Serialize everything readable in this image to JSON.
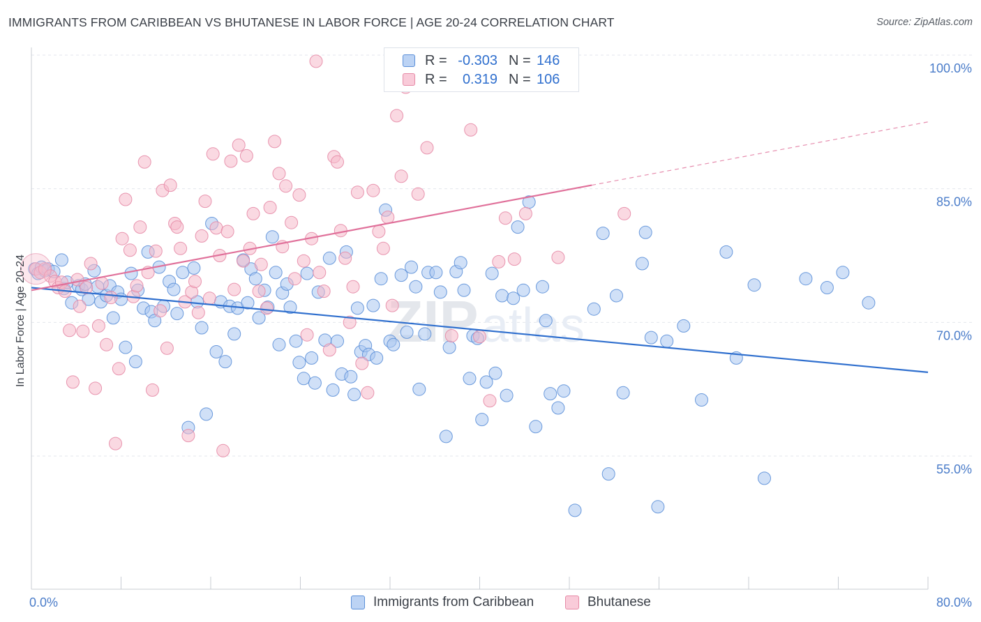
{
  "title": "IMMIGRANTS FROM CARIBBEAN VS BHUTANESE IN LABOR FORCE | AGE 20-24 CORRELATION CHART",
  "source": "Source: ZipAtlas.com",
  "watermark": "ZIPatlas",
  "colors": {
    "blue_fill": "#a9c6f0",
    "blue_stroke": "#5b8fd8",
    "blue_line": "#2f6fce",
    "pink_fill": "#f5b9cb",
    "pink_stroke": "#e68aa6",
    "pink_line": "#e0709a",
    "axis_text": "#4a7cc9",
    "grid": "#e3e6ec"
  },
  "legend": {
    "rows": [
      {
        "r_label": "R =",
        "r_value": "-0.303",
        "n_label": "N =",
        "n_value": "146"
      },
      {
        "r_label": "R =",
        "r_value": "0.319",
        "n_label": "N =",
        "n_value": "106"
      }
    ]
  },
  "bottom_legend": [
    {
      "label": "Immigrants from Caribbean"
    },
    {
      "label": "Bhutanese"
    }
  ],
  "chart_data": {
    "type": "scatter",
    "xlabel": "",
    "ylabel": "In Labor Force | Age 20-24",
    "x_tick_labels": [
      "0.0%",
      "80.0%"
    ],
    "y_tick_labels": [
      "100.0%",
      "85.0%",
      "70.0%",
      "55.0%"
    ],
    "xlim": [
      0,
      80
    ],
    "ylim": [
      42,
      101
    ],
    "grid": true,
    "legend_placement": "top-center",
    "series": [
      {
        "name": "Immigrants from Caribbean",
        "color": "blue",
        "trend": {
          "x": [
            0,
            80
          ],
          "y": [
            73.9,
            64.4
          ]
        },
        "points": [
          [
            0.3,
            76.0
          ],
          [
            0.6,
            75.5
          ],
          [
            0.9,
            76.2
          ],
          [
            1.2,
            75.8
          ],
          [
            1.5,
            76.0
          ],
          [
            2.0,
            75.7
          ],
          [
            2.7,
            77.0
          ],
          [
            2.9,
            73.8
          ],
          [
            3.2,
            74.5
          ],
          [
            3.6,
            72.2
          ],
          [
            4.2,
            74.1
          ],
          [
            4.5,
            73.7
          ],
          [
            4.8,
            74.3
          ],
          [
            5.1,
            72.6
          ],
          [
            5.6,
            75.8
          ],
          [
            5.9,
            74.0
          ],
          [
            6.2,
            72.3
          ],
          [
            6.7,
            73.0
          ],
          [
            7.0,
            74.1
          ],
          [
            7.3,
            70.5
          ],
          [
            7.7,
            73.4
          ],
          [
            8.0,
            72.6
          ],
          [
            8.4,
            67.2
          ],
          [
            8.9,
            75.5
          ],
          [
            9.3,
            65.6
          ],
          [
            9.5,
            73.6
          ],
          [
            10.0,
            71.6
          ],
          [
            10.4,
            77.9
          ],
          [
            10.7,
            71.2
          ],
          [
            11.0,
            70.2
          ],
          [
            11.4,
            76.2
          ],
          [
            11.8,
            71.8
          ],
          [
            12.3,
            74.6
          ],
          [
            12.7,
            73.7
          ],
          [
            13.0,
            71.0
          ],
          [
            13.5,
            75.6
          ],
          [
            14.0,
            58.2
          ],
          [
            14.5,
            76.1
          ],
          [
            14.8,
            72.3
          ],
          [
            15.2,
            69.4
          ],
          [
            15.6,
            59.7
          ],
          [
            16.1,
            81.1
          ],
          [
            16.5,
            66.7
          ],
          [
            16.9,
            72.3
          ],
          [
            17.3,
            65.6
          ],
          [
            17.7,
            71.8
          ],
          [
            18.1,
            68.7
          ],
          [
            18.4,
            71.6
          ],
          [
            18.9,
            77.0
          ],
          [
            19.3,
            72.2
          ],
          [
            19.6,
            76.0
          ],
          [
            20.0,
            74.9
          ],
          [
            20.3,
            70.5
          ],
          [
            20.8,
            73.6
          ],
          [
            21.1,
            71.7
          ],
          [
            21.5,
            79.6
          ],
          [
            21.8,
            75.6
          ],
          [
            22.1,
            67.5
          ],
          [
            22.4,
            73.3
          ],
          [
            22.8,
            74.3
          ],
          [
            23.1,
            71.7
          ],
          [
            23.6,
            67.9
          ],
          [
            23.9,
            65.5
          ],
          [
            24.3,
            63.7
          ],
          [
            24.6,
            75.5
          ],
          [
            25.0,
            66.0
          ],
          [
            25.3,
            63.2
          ],
          [
            25.6,
            73.4
          ],
          [
            26.2,
            68.0
          ],
          [
            26.6,
            77.2
          ],
          [
            26.9,
            62.4
          ],
          [
            27.3,
            67.9
          ],
          [
            27.7,
            64.2
          ],
          [
            28.1,
            77.9
          ],
          [
            28.5,
            63.9
          ],
          [
            28.8,
            61.9
          ],
          [
            29.1,
            71.6
          ],
          [
            29.4,
            66.7
          ],
          [
            29.8,
            67.4
          ],
          [
            30.1,
            66.4
          ],
          [
            30.5,
            71.9
          ],
          [
            30.8,
            66.0
          ],
          [
            31.2,
            74.9
          ],
          [
            31.6,
            82.6
          ],
          [
            32.0,
            67.9
          ],
          [
            32.3,
            67.5
          ],
          [
            33.0,
            75.3
          ],
          [
            33.5,
            68.9
          ],
          [
            33.9,
            76.2
          ],
          [
            34.3,
            74.0
          ],
          [
            34.6,
            62.5
          ],
          [
            35.1,
            68.7
          ],
          [
            35.4,
            75.6
          ],
          [
            36.1,
            75.6
          ],
          [
            36.5,
            73.4
          ],
          [
            37.0,
            57.2
          ],
          [
            37.3,
            67.2
          ],
          [
            37.9,
            75.7
          ],
          [
            38.3,
            76.7
          ],
          [
            38.6,
            73.6
          ],
          [
            39.1,
            63.7
          ],
          [
            39.4,
            68.5
          ],
          [
            39.8,
            68.2
          ],
          [
            40.2,
            59.1
          ],
          [
            40.6,
            63.3
          ],
          [
            41.1,
            75.5
          ],
          [
            41.4,
            64.3
          ],
          [
            42.0,
            73.0
          ],
          [
            42.4,
            61.8
          ],
          [
            43.0,
            72.7
          ],
          [
            43.4,
            80.7
          ],
          [
            43.9,
            73.6
          ],
          [
            44.4,
            83.5
          ],
          [
            45.0,
            58.3
          ],
          [
            45.6,
            74.0
          ],
          [
            45.9,
            70.2
          ],
          [
            46.3,
            62.0
          ],
          [
            47.0,
            60.4
          ],
          [
            47.5,
            62.3
          ],
          [
            48.5,
            48.9
          ],
          [
            50.2,
            71.5
          ],
          [
            51.0,
            80.0
          ],
          [
            51.5,
            53.0
          ],
          [
            52.2,
            73.0
          ],
          [
            52.8,
            62.1
          ],
          [
            54.5,
            76.6
          ],
          [
            54.8,
            80.1
          ],
          [
            55.3,
            68.3
          ],
          [
            55.9,
            49.3
          ],
          [
            56.7,
            67.9
          ],
          [
            58.2,
            69.6
          ],
          [
            59.8,
            61.3
          ],
          [
            62.0,
            77.9
          ],
          [
            62.9,
            66.0
          ],
          [
            64.5,
            74.2
          ],
          [
            65.4,
            52.5
          ],
          [
            69.1,
            74.9
          ],
          [
            71.0,
            73.9
          ],
          [
            72.4,
            75.6
          ],
          [
            74.7,
            72.2
          ]
        ]
      },
      {
        "name": "Bhutanese",
        "color": "pink",
        "trend": {
          "x": [
            0,
            50
          ],
          "y": [
            73.6,
            85.4
          ],
          "dashed_to": [
            80,
            92.5
          ]
        },
        "points": [
          [
            0.4,
            76.0
          ],
          [
            0.8,
            75.6
          ],
          [
            1.2,
            76.0
          ],
          [
            1.7,
            75.2
          ],
          [
            2.1,
            74.6
          ],
          [
            2.4,
            73.9
          ],
          [
            2.7,
            74.5
          ],
          [
            3.0,
            73.5
          ],
          [
            3.4,
            69.1
          ],
          [
            3.7,
            63.3
          ],
          [
            4.1,
            74.8
          ],
          [
            4.3,
            71.8
          ],
          [
            4.6,
            69.0
          ],
          [
            4.9,
            73.9
          ],
          [
            5.3,
            76.6
          ],
          [
            5.7,
            62.6
          ],
          [
            6.0,
            69.6
          ],
          [
            6.3,
            74.4
          ],
          [
            6.7,
            67.5
          ],
          [
            7.1,
            72.8
          ],
          [
            7.5,
            56.4
          ],
          [
            7.8,
            64.8
          ],
          [
            8.1,
            79.4
          ],
          [
            8.4,
            83.8
          ],
          [
            8.8,
            78.1
          ],
          [
            9.1,
            72.9
          ],
          [
            9.4,
            74.1
          ],
          [
            9.7,
            80.7
          ],
          [
            10.1,
            88.0
          ],
          [
            10.4,
            75.6
          ],
          [
            10.8,
            62.4
          ],
          [
            11.1,
            78.0
          ],
          [
            11.5,
            71.3
          ],
          [
            11.7,
            84.8
          ],
          [
            12.1,
            67.1
          ],
          [
            12.4,
            85.4
          ],
          [
            12.8,
            81.1
          ],
          [
            13.0,
            80.7
          ],
          [
            13.3,
            78.3
          ],
          [
            13.7,
            72.3
          ],
          [
            14.0,
            57.3
          ],
          [
            14.3,
            73.4
          ],
          [
            14.6,
            74.6
          ],
          [
            14.9,
            71.1
          ],
          [
            15.2,
            79.7
          ],
          [
            15.5,
            83.6
          ],
          [
            15.9,
            72.7
          ],
          [
            16.2,
            88.9
          ],
          [
            16.5,
            80.6
          ],
          [
            16.8,
            77.5
          ],
          [
            17.1,
            55.6
          ],
          [
            17.5,
            80.2
          ],
          [
            17.8,
            88.1
          ],
          [
            18.1,
            73.7
          ],
          [
            18.5,
            89.9
          ],
          [
            18.9,
            76.9
          ],
          [
            19.2,
            88.7
          ],
          [
            19.5,
            78.3
          ],
          [
            19.8,
            82.2
          ],
          [
            20.3,
            73.5
          ],
          [
            20.5,
            76.5
          ],
          [
            21.0,
            71.6
          ],
          [
            21.3,
            82.9
          ],
          [
            21.7,
            90.3
          ],
          [
            22.1,
            86.7
          ],
          [
            22.4,
            78.5
          ],
          [
            22.7,
            85.3
          ],
          [
            23.2,
            81.2
          ],
          [
            23.5,
            74.9
          ],
          [
            23.9,
            84.3
          ],
          [
            24.3,
            76.9
          ],
          [
            24.6,
            68.6
          ],
          [
            25.0,
            79.4
          ],
          [
            25.4,
            99.3
          ],
          [
            25.7,
            75.6
          ],
          [
            26.1,
            73.5
          ],
          [
            26.6,
            66.9
          ],
          [
            27.0,
            88.6
          ],
          [
            27.3,
            88.0
          ],
          [
            27.6,
            80.3
          ],
          [
            28.0,
            77.2
          ],
          [
            28.4,
            70.0
          ],
          [
            28.7,
            74.0
          ],
          [
            29.1,
            84.6
          ],
          [
            29.5,
            65.4
          ],
          [
            30.0,
            62.1
          ],
          [
            30.5,
            84.8
          ],
          [
            31.0,
            80.2
          ],
          [
            31.4,
            78.3
          ],
          [
            31.8,
            81.8
          ],
          [
            32.2,
            71.9
          ],
          [
            32.6,
            93.2
          ],
          [
            33.0,
            86.4
          ],
          [
            33.4,
            96.4
          ],
          [
            34.5,
            84.4
          ],
          [
            35.3,
            89.6
          ],
          [
            36.8,
            98.4
          ],
          [
            37.5,
            68.5
          ],
          [
            39.2,
            91.6
          ],
          [
            40.0,
            68.4
          ],
          [
            40.9,
            61.2
          ],
          [
            41.7,
            76.8
          ],
          [
            42.3,
            81.7
          ],
          [
            43.1,
            77.1
          ],
          [
            44.1,
            82.2
          ],
          [
            47.0,
            77.3
          ],
          [
            52.9,
            82.2
          ]
        ]
      }
    ]
  }
}
